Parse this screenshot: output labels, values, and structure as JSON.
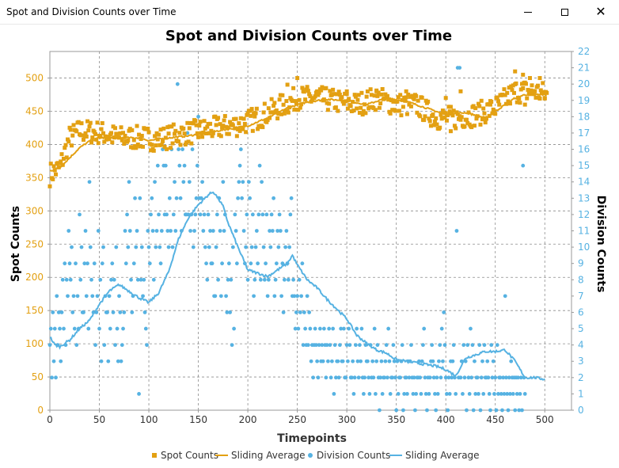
{
  "window": {
    "title": "Spot and Division Counts over Time",
    "icons": [
      "minimize-icon",
      "maximize-icon",
      "close-icon"
    ]
  },
  "colors": {
    "spot": "#e3a012",
    "division": "#56b2e2",
    "grid": "#8c8c8c",
    "text": "#000000"
  },
  "chart_data": {
    "type": "scatter",
    "title": "Spot and Division Counts over Time",
    "xlabel": "Timepoints",
    "ylabel_left": "Spot Counts",
    "ylabel_right": "Division Counts",
    "xlim": [
      0,
      527
    ],
    "ylim_left": [
      0,
      540
    ],
    "ylim_right": [
      0,
      22
    ],
    "xticks": [
      0,
      50,
      100,
      150,
      200,
      250,
      300,
      350,
      400,
      450,
      500
    ],
    "yticks_left": [
      0,
      50,
      100,
      150,
      200,
      250,
      300,
      350,
      400,
      450,
      500
    ],
    "yticks_right": [
      0,
      1,
      2,
      3,
      4,
      5,
      6,
      7,
      8,
      9,
      10,
      11,
      12,
      13,
      14,
      15,
      16,
      17,
      18,
      19,
      20,
      21,
      22
    ],
    "grid": true,
    "legend_placement": "bottom",
    "series": [
      {
        "name": "Spot Counts",
        "kind": "scatter",
        "marker": "square",
        "axis": "left",
        "anchors": [
          [
            0,
            355
          ],
          [
            10,
            365
          ],
          [
            20,
            410
          ],
          [
            30,
            420
          ],
          [
            50,
            418
          ],
          [
            70,
            410
          ],
          [
            90,
            410
          ],
          [
            110,
            408
          ],
          [
            130,
            415
          ],
          [
            150,
            420
          ],
          [
            170,
            425
          ],
          [
            190,
            430
          ],
          [
            210,
            440
          ],
          [
            230,
            455
          ],
          [
            250,
            470
          ],
          [
            270,
            470
          ],
          [
            290,
            465
          ],
          [
            310,
            460
          ],
          [
            330,
            470
          ],
          [
            350,
            460
          ],
          [
            370,
            460
          ],
          [
            390,
            440
          ],
          [
            410,
            440
          ],
          [
            430,
            445
          ],
          [
            450,
            455
          ],
          [
            470,
            480
          ],
          [
            490,
            480
          ],
          [
            502,
            475
          ]
        ],
        "noise": 18,
        "outliers": [
          [
            240,
            490
          ],
          [
            250,
            500
          ],
          [
            270,
            480
          ],
          [
            300,
            480
          ],
          [
            330,
            480
          ],
          [
            360,
            480
          ],
          [
            400,
            470
          ],
          [
            405,
            420
          ],
          [
            415,
            480
          ],
          [
            470,
            510
          ],
          [
            478,
            505
          ],
          [
            485,
            500
          ],
          [
            445,
            460
          ],
          [
            480,
            460
          ],
          [
            495,
            500
          ],
          [
            500,
            470
          ]
        ]
      },
      {
        "name": "Sliding Average",
        "kind": "line",
        "axis": "left",
        "values_at": [
          [
            0,
            360
          ],
          [
            10,
            365
          ],
          [
            20,
            380
          ],
          [
            30,
            395
          ],
          [
            40,
            405
          ],
          [
            50,
            410
          ],
          [
            70,
            410
          ],
          [
            90,
            410
          ],
          [
            100,
            406
          ],
          [
            120,
            410
          ],
          [
            140,
            413
          ],
          [
            160,
            418
          ],
          [
            180,
            423
          ],
          [
            200,
            428
          ],
          [
            220,
            440
          ],
          [
            240,
            455
          ],
          [
            260,
            464
          ],
          [
            280,
            468
          ],
          [
            300,
            466
          ],
          [
            320,
            460
          ],
          [
            340,
            470
          ],
          [
            360,
            465
          ],
          [
            380,
            455
          ],
          [
            400,
            445
          ],
          [
            420,
            448
          ],
          [
            440,
            440
          ],
          [
            450,
            450
          ],
          [
            460,
            460
          ],
          [
            470,
            470
          ],
          [
            480,
            475
          ],
          [
            490,
            475
          ],
          [
            502,
            475
          ]
        ]
      },
      {
        "name": "Division Counts",
        "kind": "scatter",
        "marker": "circle",
        "axis": "right",
        "values": [
          4,
          5,
          2,
          6,
          3,
          5,
          2,
          7,
          4,
          6,
          5,
          3,
          6,
          8,
          5,
          9,
          4,
          8,
          7,
          11,
          9,
          8,
          10,
          6,
          7,
          5,
          9,
          4,
          7,
          5,
          12,
          8,
          10,
          6,
          6,
          9,
          11,
          7,
          9,
          5,
          14,
          10,
          8,
          7,
          6,
          9,
          4,
          6,
          7,
          11,
          5,
          8,
          3,
          9,
          10,
          4,
          7,
          6,
          6,
          3,
          7,
          5,
          8,
          9,
          6,
          8,
          4,
          10,
          5,
          3,
          7,
          6,
          3,
          4,
          5,
          6,
          11,
          9,
          12,
          10,
          14,
          11,
          8,
          6,
          7,
          9,
          13,
          10,
          11,
          8,
          1,
          13,
          8,
          10,
          7,
          8,
          6,
          5,
          4,
          11,
          10,
          9,
          12,
          13,
          11,
          8,
          14,
          10,
          11,
          15,
          12,
          10,
          9,
          11,
          16,
          15,
          12,
          15,
          12,
          11,
          10,
          13,
          11,
          16,
          10,
          12,
          14,
          11,
          13,
          20,
          16,
          15,
          13,
          11,
          16,
          14,
          15,
          12,
          12,
          17,
          12,
          14,
          11,
          12,
          16,
          10,
          11,
          12,
          13,
          15,
          18,
          13,
          12,
          13,
          14,
          11,
          12,
          10,
          9,
          8,
          12,
          10,
          11,
          9,
          9,
          11,
          7,
          7,
          10,
          12,
          8,
          13,
          11,
          7,
          9,
          14,
          11,
          12,
          7,
          6,
          8,
          9,
          6,
          8,
          4,
          10,
          5,
          12,
          11,
          9,
          13,
          14,
          15,
          16,
          13,
          14,
          11,
          9,
          10,
          12,
          8,
          14,
          13,
          9,
          10,
          12,
          7,
          8,
          10,
          11,
          9,
          12,
          15,
          8,
          14,
          12,
          10,
          8,
          9,
          12,
          7,
          8,
          11,
          10,
          12,
          11,
          13,
          7,
          8,
          9,
          11,
          10,
          12,
          11,
          7,
          9,
          6,
          8,
          10,
          11,
          9,
          8,
          10,
          12,
          13,
          7,
          8,
          7,
          5,
          6,
          7,
          5,
          8,
          6,
          7,
          9,
          4,
          6,
          5,
          4,
          7,
          4,
          6,
          5,
          3,
          4,
          2,
          4,
          5,
          4,
          3,
          2,
          4,
          5,
          3,
          4,
          3,
          5,
          4,
          2,
          4,
          3,
          5,
          4,
          2,
          3,
          5,
          1,
          4,
          2,
          3,
          3,
          2,
          4,
          5,
          3,
          3,
          5,
          2,
          2,
          4,
          3,
          5,
          4,
          2,
          2,
          3,
          1,
          2,
          4,
          5,
          3,
          2,
          4,
          3,
          5,
          2,
          1,
          2,
          4,
          3,
          3,
          2,
          1,
          4,
          2,
          3,
          2,
          5,
          1,
          3,
          4,
          2,
          0,
          2,
          3,
          1,
          2,
          2,
          3,
          4,
          2,
          5,
          3,
          1,
          2,
          2,
          4,
          3,
          2,
          0,
          3,
          1,
          2,
          2,
          3,
          4,
          0,
          1,
          2,
          2,
          1,
          3,
          2,
          3,
          4,
          2,
          1,
          2,
          0,
          1,
          2,
          2,
          3,
          2,
          1,
          3,
          4,
          5,
          2,
          1,
          0,
          2,
          1,
          2,
          3,
          4,
          3,
          2,
          1,
          0,
          2,
          1,
          3,
          4,
          2,
          5,
          3,
          6,
          4,
          2,
          1,
          0,
          2,
          1,
          3,
          2,
          3,
          4,
          2,
          1,
          11,
          21,
          2,
          21,
          2,
          3,
          1,
          4,
          2,
          3,
          0,
          4,
          2,
          1,
          5,
          2,
          4,
          0,
          3,
          1,
          2,
          2,
          1,
          4,
          0,
          2,
          3,
          1,
          4,
          2,
          2,
          3,
          2,
          1,
          0,
          4,
          2,
          3,
          1,
          2,
          0,
          4,
          1,
          2,
          2,
          1,
          0,
          2,
          1,
          7,
          2,
          1,
          0,
          2,
          1,
          3,
          2,
          1,
          2,
          0,
          2,
          1,
          2,
          0,
          1,
          2,
          0,
          15,
          2,
          1
        ]
      },
      {
        "name": "Sliding Average",
        "kind": "line",
        "axis": "right",
        "values_at": [
          [
            0,
            4.5
          ],
          [
            5,
            4.0
          ],
          [
            10,
            3.9
          ],
          [
            20,
            4.3
          ],
          [
            30,
            5.0
          ],
          [
            40,
            5.5
          ],
          [
            50,
            6.5
          ],
          [
            60,
            7.3
          ],
          [
            70,
            7.7
          ],
          [
            80,
            7.3
          ],
          [
            90,
            6.9
          ],
          [
            100,
            6.6
          ],
          [
            110,
            7.2
          ],
          [
            120,
            8.5
          ],
          [
            130,
            10.5
          ],
          [
            140,
            11.8
          ],
          [
            150,
            12.6
          ],
          [
            160,
            13.2
          ],
          [
            165,
            13.4
          ],
          [
            170,
            13.0
          ],
          [
            175,
            12.5
          ],
          [
            180,
            11.5
          ],
          [
            190,
            10.0
          ],
          [
            200,
            8.6
          ],
          [
            210,
            8.4
          ],
          [
            220,
            8.2
          ],
          [
            230,
            8.6
          ],
          [
            240,
            9.0
          ],
          [
            245,
            9.5
          ],
          [
            250,
            8.9
          ],
          [
            260,
            8.0
          ],
          [
            270,
            7.5
          ],
          [
            280,
            6.8
          ],
          [
            290,
            6.2
          ],
          [
            300,
            5.6
          ],
          [
            310,
            4.6
          ],
          [
            320,
            4.1
          ],
          [
            330,
            3.7
          ],
          [
            340,
            3.5
          ],
          [
            350,
            3.1
          ],
          [
            360,
            3.0
          ],
          [
            370,
            2.9
          ],
          [
            380,
            2.8
          ],
          [
            390,
            2.7
          ],
          [
            400,
            2.5
          ],
          [
            410,
            2.1
          ],
          [
            420,
            3.2
          ],
          [
            430,
            3.4
          ],
          [
            440,
            3.6
          ],
          [
            450,
            3.6
          ],
          [
            460,
            3.7
          ],
          [
            470,
            3.0
          ],
          [
            475,
            2.5
          ],
          [
            480,
            2.0
          ],
          [
            490,
            2.0
          ],
          [
            500,
            1.9
          ]
        ]
      }
    ]
  },
  "legend": {
    "items": [
      {
        "label": "Spot Counts",
        "symbol": "square",
        "color": "#e3a012"
      },
      {
        "label": "Sliding Average",
        "symbol": "line",
        "color": "#e3a012"
      },
      {
        "label": "Division Counts",
        "symbol": "circle",
        "color": "#56b2e2"
      },
      {
        "label": "Sliding Average",
        "symbol": "line",
        "color": "#56b2e2"
      }
    ]
  }
}
